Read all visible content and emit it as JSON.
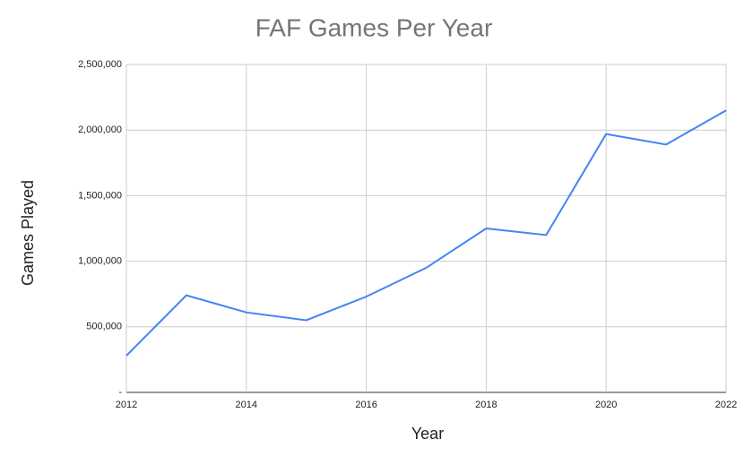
{
  "chart_data": {
    "type": "line",
    "title": "FAF Games Per Year",
    "x_label": "Year",
    "y_label": "Games Played",
    "x": [
      2012,
      2013,
      2014,
      2015,
      2016,
      2017,
      2018,
      2019,
      2020,
      2021,
      2022
    ],
    "series": [
      {
        "name": "Games Played",
        "color": "#4285f4",
        "values": [
          280000,
          740000,
          610000,
          550000,
          730000,
          950000,
          1250000,
          1200000,
          1970000,
          1890000,
          2150000
        ]
      }
    ],
    "xlim": [
      2012,
      2022
    ],
    "xticks": [
      2012,
      2014,
      2016,
      2018,
      2020,
      2022
    ],
    "ylim": [
      0,
      2500000
    ],
    "yticks": [
      {
        "value": 0,
        "label": "-"
      },
      {
        "value": 500000,
        "label": "500,000"
      },
      {
        "value": 1000000,
        "label": "1,000,000"
      },
      {
        "value": 1500000,
        "label": "1,500,000"
      },
      {
        "value": 2000000,
        "label": "2,000,000"
      },
      {
        "value": 2500000,
        "label": "2,500,000"
      }
    ],
    "grid": true
  }
}
